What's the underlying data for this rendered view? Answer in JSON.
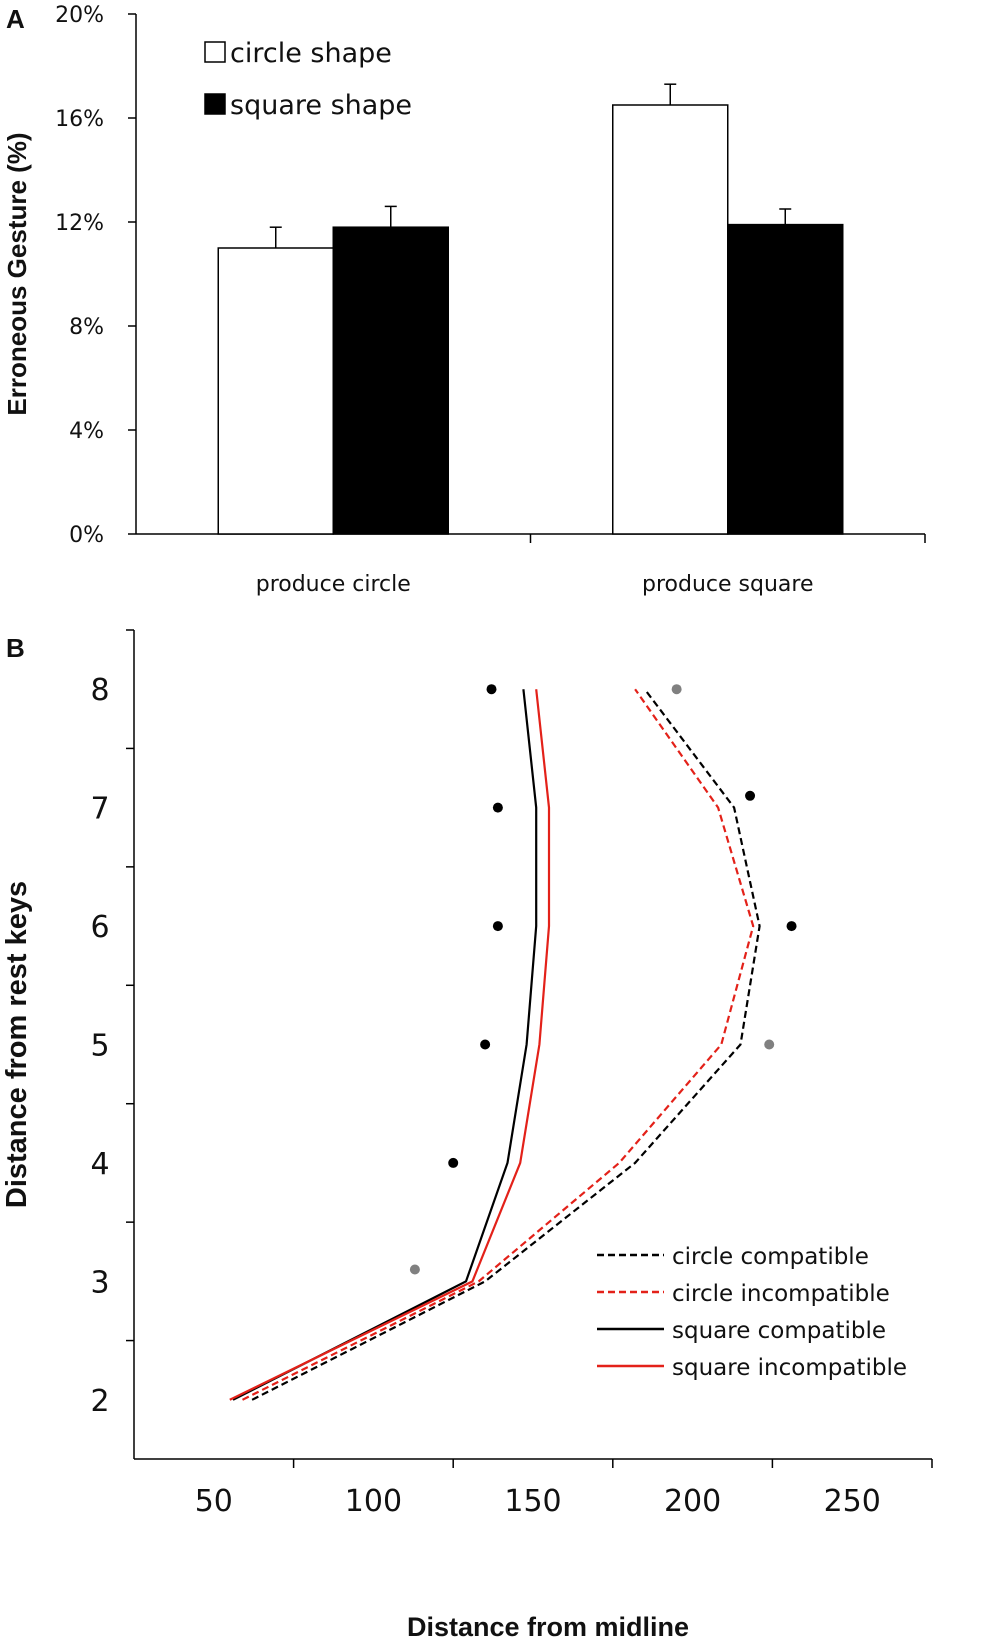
{
  "chart_data": [
    {
      "panel": "A",
      "type": "bar",
      "title": "",
      "xlabel": "",
      "ylabel": "Erroneous Gesture (%)",
      "ylim": [
        0,
        20
      ],
      "yticks": [
        "0%",
        "4%",
        "8%",
        "12%",
        "16%",
        "20%"
      ],
      "categories": [
        "produce circle",
        "produce square"
      ],
      "legend_position": "top-left",
      "series": [
        {
          "name": "circle shape",
          "color": "#ffffff",
          "values": [
            11.0,
            16.5
          ],
          "errors": [
            0.8,
            0.8
          ]
        },
        {
          "name": "square shape",
          "color": "#000000",
          "values": [
            11.8,
            11.9
          ],
          "errors": [
            0.8,
            0.6
          ]
        }
      ]
    },
    {
      "panel": "B",
      "type": "line",
      "xlabel": "Distance from midline",
      "ylabel": "Distance from rest keys",
      "xlim": [
        25,
        275
      ],
      "ylim": [
        1.5,
        8.5
      ],
      "xticks": [
        "50",
        "100",
        "150",
        "200",
        "250"
      ],
      "yticks": [
        "2",
        "3",
        "4",
        "5",
        "6",
        "7",
        "8"
      ],
      "legend_position": "bottom-right",
      "series": [
        {
          "name": "circle compatible",
          "color": "#000000",
          "dash": true,
          "points": [
            [
              62,
              2
            ],
            [
              135,
              3
            ],
            [
              182,
              4
            ],
            [
              215,
              5
            ],
            [
              221,
              6
            ],
            [
              213,
              7
            ],
            [
              185,
              8
            ]
          ]
        },
        {
          "name": "circle incompatible",
          "color": "#e32119",
          "dash": true,
          "points": [
            [
              59,
              2
            ],
            [
              133,
              3
            ],
            [
              177,
              4
            ],
            [
              209,
              5
            ],
            [
              219,
              6
            ],
            [
              208,
              7
            ],
            [
              182,
              8
            ]
          ]
        },
        {
          "name": "square compatible",
          "color": "#000000",
          "dash": false,
          "points": [
            [
              56,
              2
            ],
            [
              129,
              3
            ],
            [
              142,
              4
            ],
            [
              148,
              5
            ],
            [
              151,
              6
            ],
            [
              151,
              7
            ],
            [
              147,
              8
            ]
          ]
        },
        {
          "name": "square incompatible",
          "color": "#e32119",
          "dash": false,
          "points": [
            [
              55,
              2
            ],
            [
              131,
              3
            ],
            [
              146,
              4
            ],
            [
              152,
              5
            ],
            [
              155,
              6
            ],
            [
              155,
              7
            ],
            [
              151,
              8
            ]
          ]
        }
      ],
      "markers": [
        {
          "x": 137,
          "y": 8,
          "color": "#000000"
        },
        {
          "x": 195,
          "y": 8,
          "color": "#808080"
        },
        {
          "x": 139,
          "y": 7,
          "color": "#000000"
        },
        {
          "x": 218,
          "y": 7.1,
          "color": "#000000"
        },
        {
          "x": 139,
          "y": 6,
          "color": "#000000"
        },
        {
          "x": 231,
          "y": 6,
          "color": "#000000"
        },
        {
          "x": 135,
          "y": 5,
          "color": "#000000"
        },
        {
          "x": 224,
          "y": 5,
          "color": "#808080"
        },
        {
          "x": 125,
          "y": 4,
          "color": "#000000"
        },
        {
          "x": 113,
          "y": 3.1,
          "color": "#808080"
        }
      ]
    }
  ],
  "labels": {
    "panel_a": "A",
    "panel_b": "B"
  }
}
